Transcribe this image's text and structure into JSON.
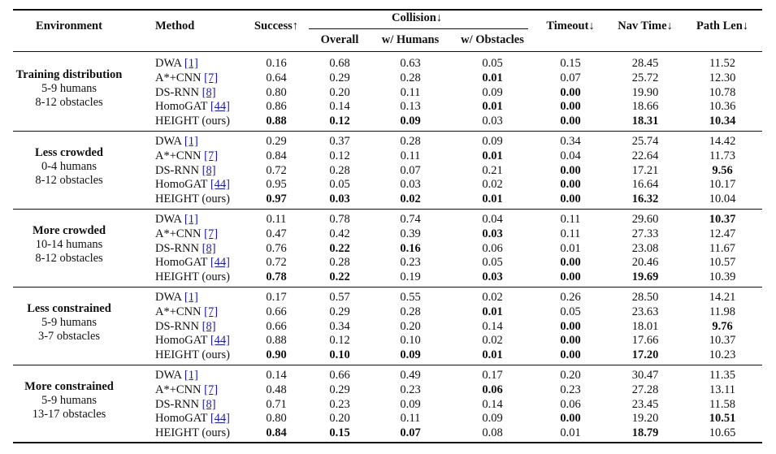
{
  "headers": {
    "environment": "Environment",
    "method": "Method",
    "success": "Success↑",
    "collision": "Collision↓",
    "overall": "Overall",
    "humans": "w/ Humans",
    "obstacles": "w/ Obstacles",
    "timeout": "Timeout↓",
    "navtime": "Nav Time↓",
    "pathlen": "Path Len↓"
  },
  "groups": [
    {
      "env": [
        "Training distribution",
        "5-9 humans",
        "8-12 obstacles"
      ],
      "rows": [
        {
          "method": "DWA ",
          "ref": "[1]",
          "values": [
            "0.16",
            "0.68",
            "0.63",
            "0.05",
            "0.15",
            "28.45",
            "11.52"
          ],
          "bold": []
        },
        {
          "method": "A*+CNN ",
          "ref": "[7]",
          "values": [
            "0.64",
            "0.29",
            "0.28",
            "0.01",
            "0.07",
            "25.72",
            "12.30"
          ],
          "bold": [
            3
          ]
        },
        {
          "method": "DS-RNN ",
          "ref": "[8]",
          "values": [
            "0.80",
            "0.20",
            "0.11",
            "0.09",
            "0.00",
            "19.90",
            "10.78"
          ],
          "bold": [
            4
          ]
        },
        {
          "method": "HomoGAT ",
          "ref": "[44]",
          "values": [
            "0.86",
            "0.14",
            "0.13",
            "0.01",
            "0.00",
            "18.66",
            "10.36"
          ],
          "bold": [
            3,
            4
          ]
        },
        {
          "method": "HEIGHT (ours)",
          "ref": "",
          "values": [
            "0.88",
            "0.12",
            "0.09",
            "0.03",
            "0.00",
            "18.31",
            "10.34"
          ],
          "bold": [
            0,
            1,
            2,
            4,
            5,
            6
          ]
        }
      ]
    },
    {
      "env": [
        "Less crowded",
        "0-4 humans",
        "8-12 obstacles"
      ],
      "rows": [
        {
          "method": "DWA ",
          "ref": "[1]",
          "values": [
            "0.29",
            "0.37",
            "0.28",
            "0.09",
            "0.34",
            "25.74",
            "14.42"
          ],
          "bold": []
        },
        {
          "method": "A*+CNN ",
          "ref": "[7]",
          "values": [
            "0.84",
            "0.12",
            "0.11",
            "0.01",
            "0.04",
            "22.64",
            "11.73"
          ],
          "bold": [
            3
          ]
        },
        {
          "method": "DS-RNN ",
          "ref": "[8]",
          "values": [
            "0.72",
            "0.28",
            "0.07",
            "0.21",
            "0.00",
            "17.21",
            "9.56"
          ],
          "bold": [
            4,
            6
          ]
        },
        {
          "method": "HomoGAT ",
          "ref": "[44]",
          "values": [
            "0.95",
            "0.05",
            "0.03",
            "0.02",
            "0.00",
            "16.64",
            "10.17"
          ],
          "bold": [
            4
          ]
        },
        {
          "method": "HEIGHT (ours)",
          "ref": "",
          "values": [
            "0.97",
            "0.03",
            "0.02",
            "0.01",
            "0.00",
            "16.32",
            "10.04"
          ],
          "bold": [
            0,
            1,
            2,
            3,
            4,
            5
          ]
        }
      ]
    },
    {
      "env": [
        "More crowded",
        "10-14 humans",
        "8-12 obstacles"
      ],
      "rows": [
        {
          "method": "DWA ",
          "ref": "[1]",
          "values": [
            "0.11",
            "0.78",
            "0.74",
            "0.04",
            "0.11",
            "29.60",
            "10.37"
          ],
          "bold": [
            6
          ]
        },
        {
          "method": "A*+CNN ",
          "ref": "[7]",
          "values": [
            "0.47",
            "0.42",
            "0.39",
            "0.03",
            "0.11",
            "27.33",
            "12.47"
          ],
          "bold": [
            3
          ]
        },
        {
          "method": "DS-RNN ",
          "ref": "[8]",
          "values": [
            "0.76",
            "0.22",
            "0.16",
            "0.06",
            "0.01",
            "23.08",
            "11.67"
          ],
          "bold": [
            1,
            2
          ]
        },
        {
          "method": "HomoGAT ",
          "ref": "[44]",
          "values": [
            "0.72",
            "0.28",
            "0.23",
            "0.05",
            "0.00",
            "20.46",
            "10.57"
          ],
          "bold": [
            4
          ]
        },
        {
          "method": "HEIGHT (ours)",
          "ref": "",
          "values": [
            "0.78",
            "0.22",
            "0.19",
            "0.03",
            "0.00",
            "19.69",
            "10.39"
          ],
          "bold": [
            0,
            1,
            3,
            4,
            5
          ]
        }
      ]
    },
    {
      "env": [
        "Less constrained",
        "5-9 humans",
        "3-7 obstacles"
      ],
      "rows": [
        {
          "method": "DWA ",
          "ref": "[1]",
          "values": [
            "0.17",
            "0.57",
            "0.55",
            "0.02",
            "0.26",
            "28.50",
            "14.21"
          ],
          "bold": []
        },
        {
          "method": "A*+CNN ",
          "ref": "[7]",
          "values": [
            "0.66",
            "0.29",
            "0.28",
            "0.01",
            "0.05",
            "23.63",
            "11.98"
          ],
          "bold": [
            3
          ]
        },
        {
          "method": "DS-RNN ",
          "ref": "[8]",
          "values": [
            "0.66",
            "0.34",
            "0.20",
            "0.14",
            "0.00",
            "18.01",
            "9.76"
          ],
          "bold": [
            4,
            6
          ]
        },
        {
          "method": "HomoGAT ",
          "ref": "[44]",
          "values": [
            "0.88",
            "0.12",
            "0.10",
            "0.02",
            "0.00",
            "17.66",
            "10.37"
          ],
          "bold": [
            4
          ]
        },
        {
          "method": "HEIGHT (ours)",
          "ref": "",
          "values": [
            "0.90",
            "0.10",
            "0.09",
            "0.01",
            "0.00",
            "17.20",
            "10.23"
          ],
          "bold": [
            0,
            1,
            2,
            3,
            4,
            5
          ]
        }
      ]
    },
    {
      "env": [
        "More constrained",
        "5-9 humans",
        "13-17 obstacles"
      ],
      "rows": [
        {
          "method": "DWA ",
          "ref": "[1]",
          "values": [
            "0.14",
            "0.66",
            "0.49",
            "0.17",
            "0.20",
            "30.47",
            "11.35"
          ],
          "bold": []
        },
        {
          "method": "A*+CNN ",
          "ref": "[7]",
          "values": [
            "0.48",
            "0.29",
            "0.23",
            "0.06",
            "0.23",
            "27.28",
            "13.11"
          ],
          "bold": [
            3
          ]
        },
        {
          "method": "DS-RNN ",
          "ref": "[8]",
          "values": [
            "0.71",
            "0.23",
            "0.09",
            "0.14",
            "0.06",
            "23.45",
            "11.58"
          ],
          "bold": []
        },
        {
          "method": "HomoGAT ",
          "ref": "[44]",
          "values": [
            "0.80",
            "0.20",
            "0.11",
            "0.09",
            "0.00",
            "19.20",
            "10.51"
          ],
          "bold": [
            4,
            6
          ]
        },
        {
          "method": "HEIGHT (ours)",
          "ref": "",
          "values": [
            "0.84",
            "0.15",
            "0.07",
            "0.08",
            "0.01",
            "18.79",
            "10.65"
          ],
          "bold": [
            0,
            1,
            2,
            5
          ]
        }
      ]
    }
  ]
}
